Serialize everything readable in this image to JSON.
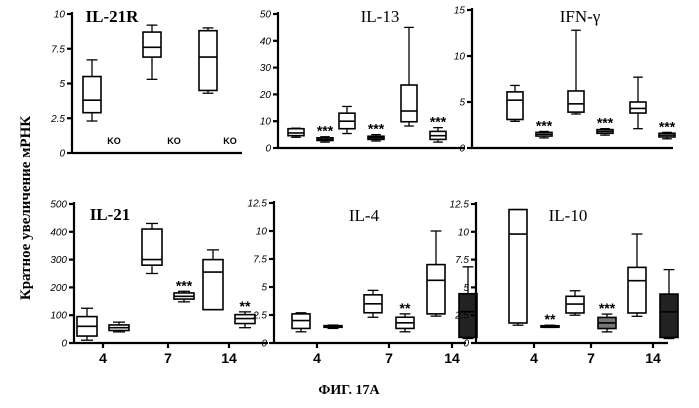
{
  "figure": {
    "ylabel": "Кратное увеличение мРНК",
    "caption": "ФИГ. 17А"
  },
  "chart_data": [
    {
      "type": "box",
      "title": "IL-21R",
      "ylim": [
        0,
        10
      ],
      "yticks": [
        "0",
        "2.5",
        "5",
        "7.5",
        "10"
      ],
      "categories": [
        "4",
        "7",
        "14"
      ],
      "boxes": [
        {
          "x": "4",
          "min": 2.3,
          "q1": 2.9,
          "median": 3.8,
          "q3": 5.5,
          "max": 6.7,
          "fill": "white"
        },
        {
          "x": "7",
          "min": 5.3,
          "q1": 6.9,
          "median": 7.6,
          "q3": 8.7,
          "max": 9.2,
          "fill": "white"
        },
        {
          "x": "14",
          "min": 4.3,
          "q1": 4.5,
          "median": 6.9,
          "q3": 8.8,
          "max": 9.0,
          "fill": "white"
        }
      ],
      "annotations": [
        "KO",
        "KO",
        "KO"
      ]
    },
    {
      "type": "box",
      "title": "IL-13",
      "ylim": [
        0,
        50
      ],
      "yticks": [
        "0",
        "10",
        "20",
        "30",
        "40",
        "50"
      ],
      "categories": [
        "4",
        "7",
        "14"
      ],
      "boxes": [
        {
          "x": "4",
          "min": 4,
          "q1": 4.6,
          "median": 5.6,
          "q3": 7.2,
          "max": 7.4,
          "fill": "white"
        },
        {
          "x": "4",
          "min": 2.2,
          "q1": 2.8,
          "median": 3.2,
          "q3": 3.8,
          "max": 4.2,
          "fill": "white",
          "sig": "***"
        },
        {
          "x": "7",
          "min": 5.4,
          "q1": 7.2,
          "median": 10,
          "q3": 13,
          "max": 15.5,
          "fill": "white"
        },
        {
          "x": "7",
          "min": 2.6,
          "q1": 3.2,
          "median": 3.8,
          "q3": 4.4,
          "max": 5,
          "fill": "white",
          "sig": "***"
        },
        {
          "x": "14",
          "min": 8.2,
          "q1": 9.8,
          "median": 13.8,
          "q3": 23.5,
          "max": 45,
          "fill": "white"
        },
        {
          "x": "14",
          "min": 2.2,
          "q1": 3.2,
          "median": 4.6,
          "q3": 6.2,
          "max": 7.6,
          "fill": "white",
          "sig": "***"
        }
      ]
    },
    {
      "type": "box",
      "title": "IFN-γ",
      "ylim": [
        0,
        15
      ],
      "yticks": [
        "0",
        "5",
        "10",
        "15"
      ],
      "categories": [
        "4",
        "7",
        "14"
      ],
      "boxes": [
        {
          "x": "4",
          "min": 2.9,
          "q1": 3.1,
          "median": 5.2,
          "q3": 6.1,
          "max": 6.8,
          "fill": "white"
        },
        {
          "x": "4",
          "min": 1.1,
          "q1": 1.3,
          "median": 1.5,
          "q3": 1.7,
          "max": 1.8,
          "fill": "white",
          "sig": "***"
        },
        {
          "x": "7",
          "min": 3.7,
          "q1": 3.9,
          "median": 4.8,
          "q3": 6.2,
          "max": 12.8,
          "fill": "white"
        },
        {
          "x": "7",
          "min": 1.4,
          "q1": 1.6,
          "median": 1.8,
          "q3": 2.0,
          "max": 2.1,
          "fill": "white",
          "sig": "***"
        },
        {
          "x": "14",
          "min": 2.1,
          "q1": 3.8,
          "median": 4.3,
          "q3": 5.0,
          "max": 7.7,
          "fill": "white"
        },
        {
          "x": "14",
          "min": 1.0,
          "q1": 1.2,
          "median": 1.4,
          "q3": 1.6,
          "max": 1.7,
          "fill": "white",
          "sig": "***"
        }
      ]
    },
    {
      "type": "box",
      "title": "IL-21",
      "ylim": [
        0,
        500
      ],
      "yticks": [
        "0",
        "100",
        "200",
        "300",
        "400",
        "500"
      ],
      "categories": [
        "4",
        "7",
        "14"
      ],
      "boxes": [
        {
          "x": "4",
          "min": 10,
          "q1": 25,
          "median": 60,
          "q3": 95,
          "max": 125,
          "fill": "white"
        },
        {
          "x": "4",
          "min": 40,
          "q1": 45,
          "median": 55,
          "q3": 65,
          "max": 75,
          "fill": "white"
        },
        {
          "x": "7",
          "min": 250,
          "q1": 280,
          "median": 300,
          "q3": 410,
          "max": 430,
          "fill": "white"
        },
        {
          "x": "7",
          "min": 148,
          "q1": 158,
          "median": 168,
          "q3": 180,
          "max": 186,
          "fill": "white",
          "sig": "***"
        },
        {
          "x": "14",
          "min": 120,
          "q1": 120,
          "median": 255,
          "q3": 300,
          "max": 335,
          "fill": "white"
        },
        {
          "x": "14",
          "min": 55,
          "q1": 70,
          "median": 88,
          "q3": 102,
          "max": 112,
          "fill": "white",
          "sig": "**"
        }
      ]
    },
    {
      "type": "box",
      "title": "IL-4",
      "ylim": [
        0,
        12.5
      ],
      "yticks": [
        "0",
        "2.5",
        "5",
        "7.5",
        "10",
        "12.5"
      ],
      "categories": [
        "4",
        "7",
        "14"
      ],
      "boxes": [
        {
          "x": "4",
          "min": 1.0,
          "q1": 1.3,
          "median": 2.0,
          "q3": 2.6,
          "max": 2.7,
          "fill": "white"
        },
        {
          "x": "4",
          "min": 1.3,
          "q1": 1.4,
          "median": 1.5,
          "q3": 1.55,
          "max": 1.6,
          "fill": "white"
        },
        {
          "x": "7",
          "min": 2.3,
          "q1": 2.7,
          "median": 3.5,
          "q3": 4.3,
          "max": 4.7,
          "fill": "white"
        },
        {
          "x": "7",
          "min": 1.0,
          "q1": 1.3,
          "median": 1.8,
          "q3": 2.3,
          "max": 2.6,
          "fill": "white",
          "sig": "**"
        },
        {
          "x": "14",
          "min": 2.4,
          "q1": 2.6,
          "median": 5.6,
          "q3": 7.0,
          "max": 10.0,
          "fill": "white"
        },
        {
          "x": "14",
          "min": 0.4,
          "q1": 0.5,
          "median": 2.8,
          "q3": 4.4,
          "max": 6.8,
          "fill": "dark"
        }
      ]
    },
    {
      "type": "box",
      "title": "IL-10",
      "ylim": [
        0,
        12.5
      ],
      "yticks": [
        "0",
        "2.5",
        "5",
        "7.5",
        "10",
        "12.5"
      ],
      "categories": [
        "4",
        "7",
        "14"
      ],
      "boxes": [
        {
          "x": "4",
          "min": 1.6,
          "q1": 1.8,
          "median": 9.8,
          "q3": 12.0,
          "max": 12.0,
          "fill": "white"
        },
        {
          "x": "4",
          "min": 1.4,
          "q1": 1.45,
          "median": 1.5,
          "q3": 1.55,
          "max": 1.6,
          "fill": "white",
          "sig": "**"
        },
        {
          "x": "7",
          "min": 2.5,
          "q1": 2.7,
          "median": 3.5,
          "q3": 4.2,
          "max": 4.7,
          "fill": "white"
        },
        {
          "x": "7",
          "min": 1.0,
          "q1": 1.3,
          "median": 1.8,
          "q3": 2.3,
          "max": 2.6,
          "fill": "mid",
          "sig": "***"
        },
        {
          "x": "14",
          "min": 2.4,
          "q1": 2.7,
          "median": 5.6,
          "q3": 6.8,
          "max": 9.8,
          "fill": "white"
        },
        {
          "x": "14",
          "min": 0.4,
          "q1": 0.5,
          "median": 2.8,
          "q3": 4.4,
          "max": 6.6,
          "fill": "dark"
        }
      ]
    }
  ]
}
